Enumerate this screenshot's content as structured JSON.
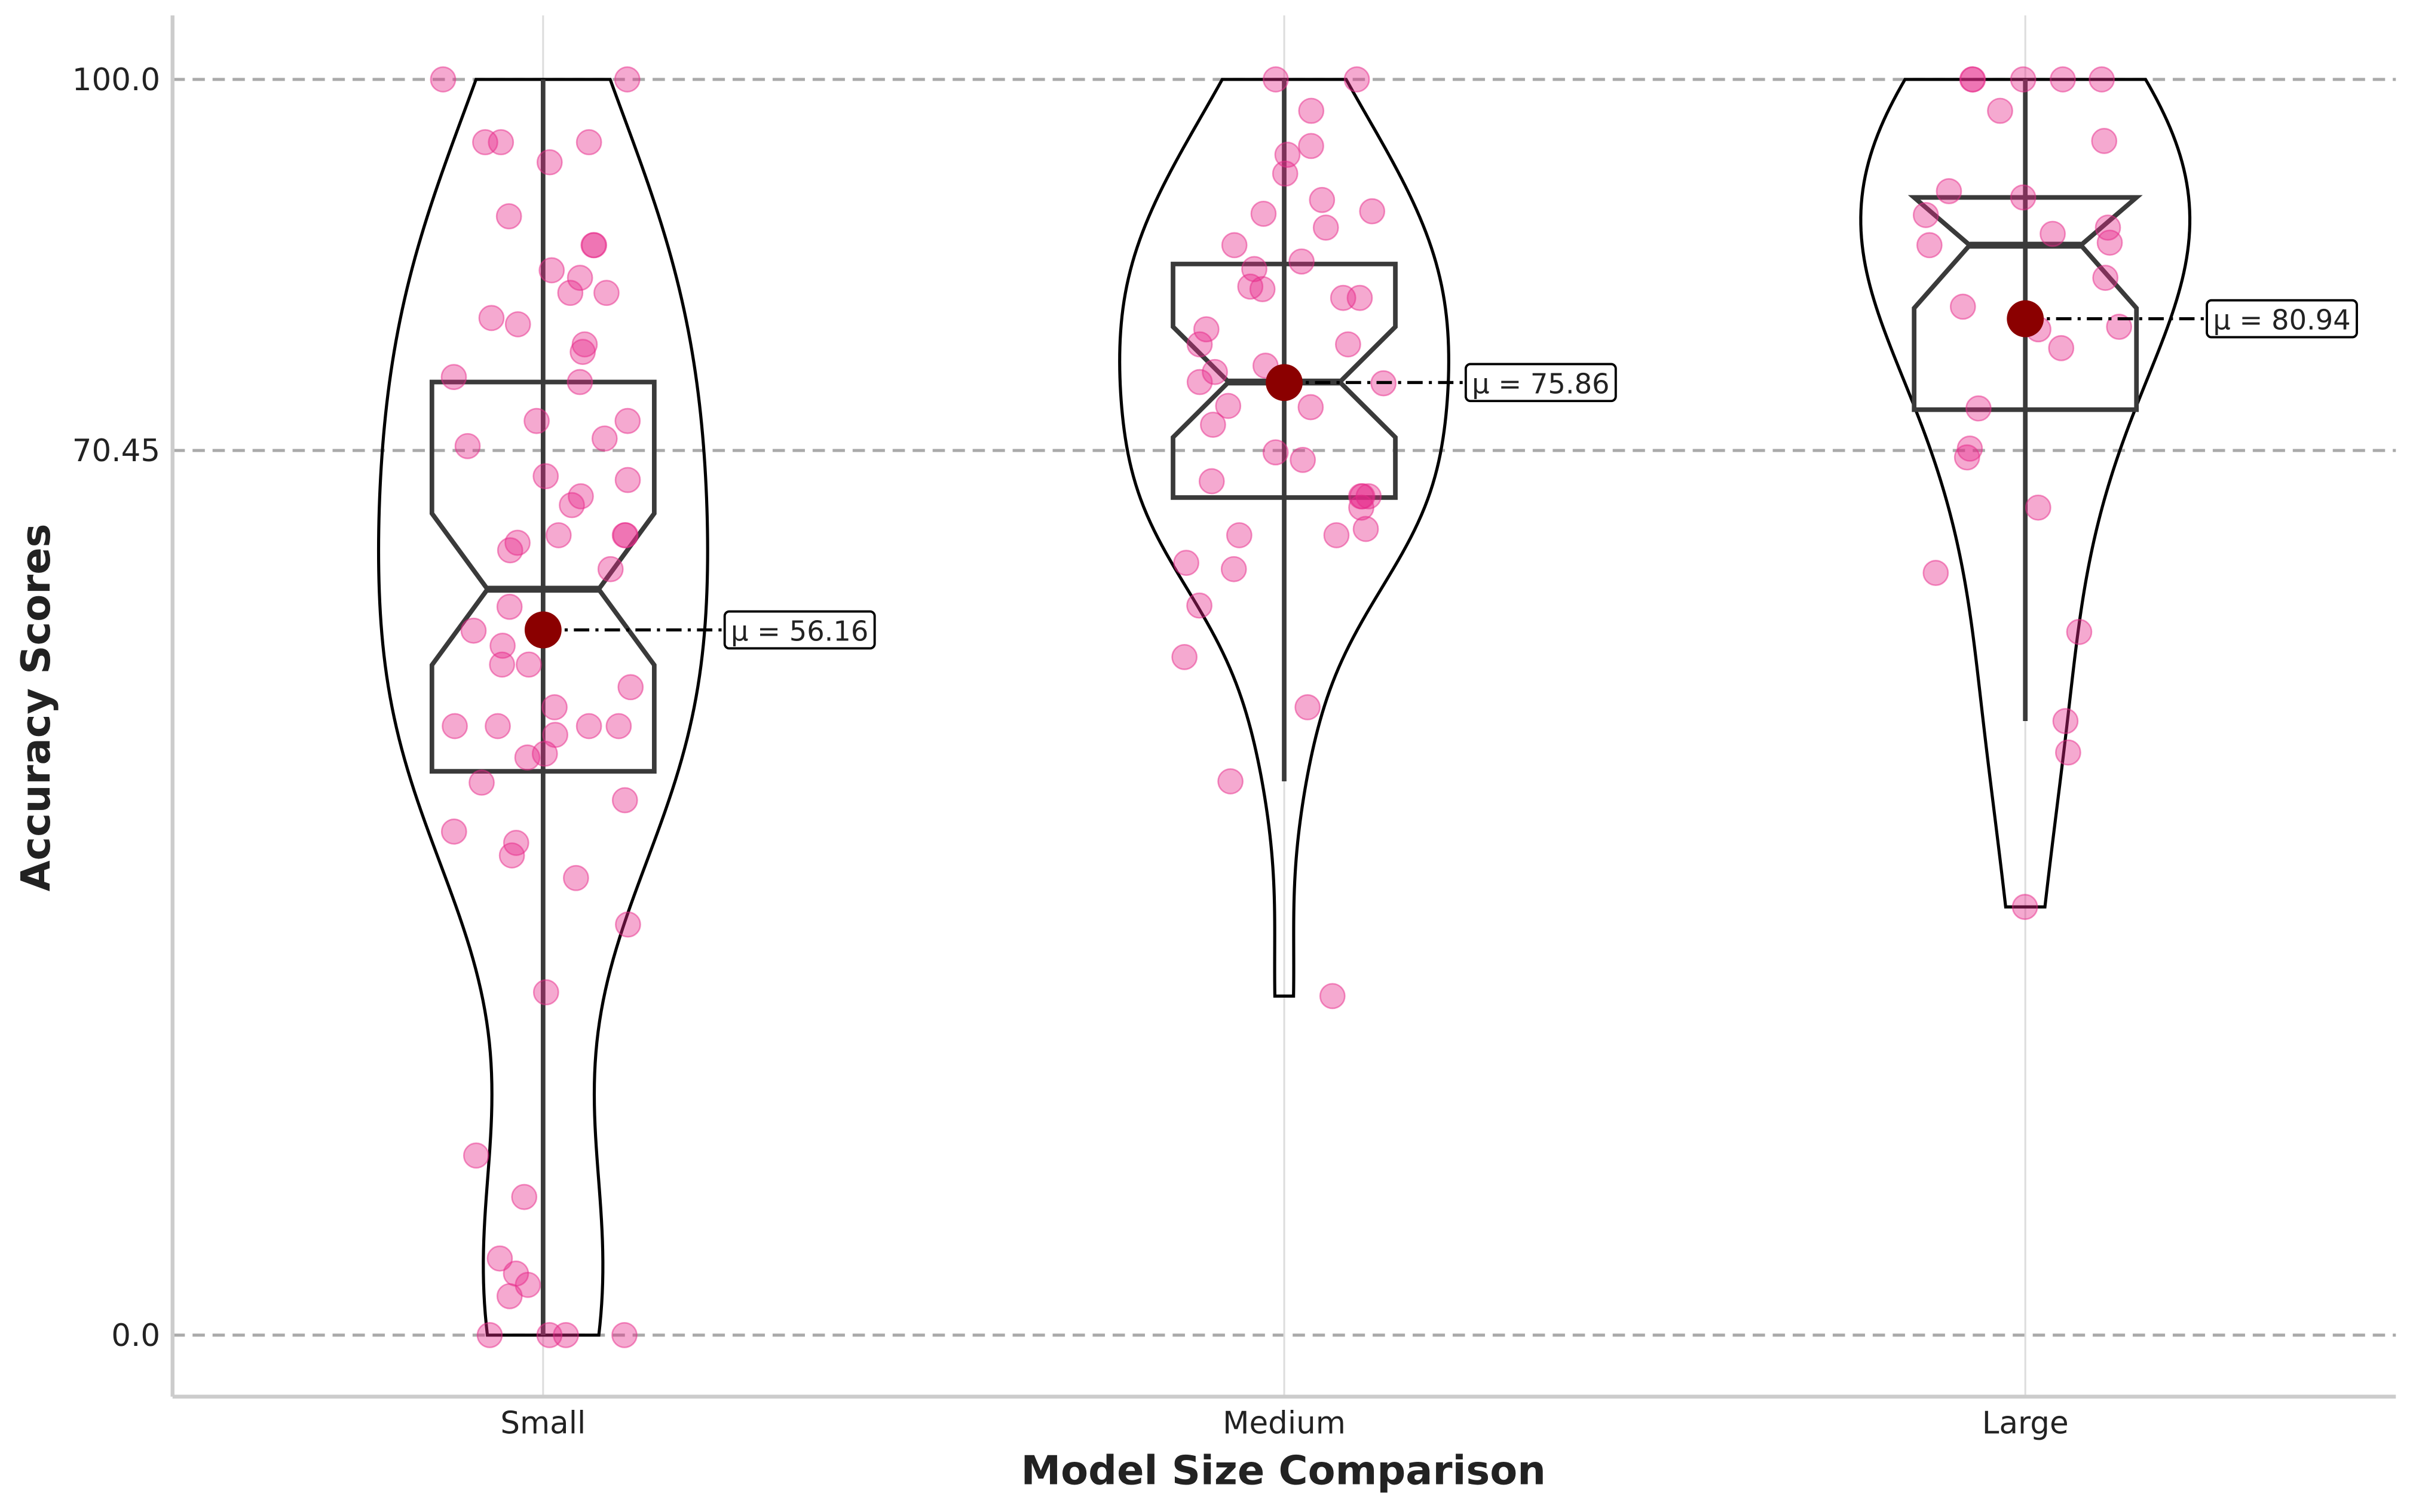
{
  "chart_data": {
    "type": "violin",
    "xlabel": "Model Size Comparison",
    "ylabel": "Accuracy Scores",
    "categories": [
      "Small",
      "Medium",
      "Large"
    ],
    "ylim": [
      -4.9,
      105.1
    ],
    "yticks": [
      {
        "value": 0,
        "label": "0.0"
      },
      70.45,
      {
        "value": 100,
        "label": "100.0"
      }
    ],
    "grid": true,
    "point_color": "#e7298a",
    "mean_color": "#8b0000",
    "box_color": "#3a3a3a",
    "violin_color": "#000000",
    "groups": [
      {
        "values": [
          100,
          100,
          95,
          95,
          95,
          93.4,
          89.1,
          86.8,
          86.8,
          84.8,
          84.2,
          83,
          83,
          81,
          80.5,
          78.9,
          78.3,
          76.3,
          75.9,
          72.8,
          72.8,
          71.4,
          70.8,
          68.4,
          68.1,
          66.8,
          66.1,
          63.7,
          63.7,
          63.7,
          63.1,
          62.5,
          61,
          58,
          56.1,
          54.9,
          53.4,
          53.4,
          51.6,
          50,
          48.5,
          48.5,
          48.5,
          48.5,
          47.8,
          46.3,
          46,
          44,
          42.6,
          40.1,
          39.2,
          38.2,
          36.4,
          32.7,
          27.3,
          14.3,
          11,
          6.1,
          4.9,
          4,
          3.1,
          0,
          0,
          0,
          0
        ],
        "q1": 44.9,
        "median": 59.4,
        "q3": 75.9,
        "whislo": 0,
        "whishi": 100
      },
      {
        "values": [
          100,
          100,
          97.5,
          94.7,
          94,
          92.5,
          90.4,
          89.5,
          89.3,
          88.2,
          86.8,
          85.5,
          84.9,
          83.5,
          83.3,
          82.6,
          82.6,
          80.1,
          78.9,
          78.9,
          77.2,
          76.7,
          75.9,
          75.8,
          74,
          73.9,
          72.5,
          70.3,
          69.7,
          68,
          66.8,
          66.8,
          66.8,
          65.9,
          64.2,
          63.7,
          63.7,
          61.5,
          61,
          58.1,
          54,
          50,
          44.1,
          27
        ],
        "q1": 66.7,
        "median": 75.9,
        "q3": 85.3,
        "whislo": 44.1,
        "whishi": 100
      },
      {
        "values": [
          100,
          100,
          100,
          100,
          100,
          97.5,
          95.1,
          91.1,
          90.6,
          89.2,
          88.2,
          87.7,
          87,
          86.8,
          84.2,
          81.9,
          80.3,
          80.1,
          78.6,
          73.8,
          70.6,
          69.9,
          65.9,
          60.7,
          56,
          48.9,
          46.4,
          34.1
        ],
        "q1": 73.7,
        "median": 86.8,
        "q3": 90.6,
        "whislo": 48.9,
        "whishi": 100
      }
    ],
    "means": [
      56.16,
      75.86,
      80.94
    ],
    "mean_labels": [
      "μ = 56.16",
      "μ = 75.86",
      "μ = 80.94"
    ]
  }
}
